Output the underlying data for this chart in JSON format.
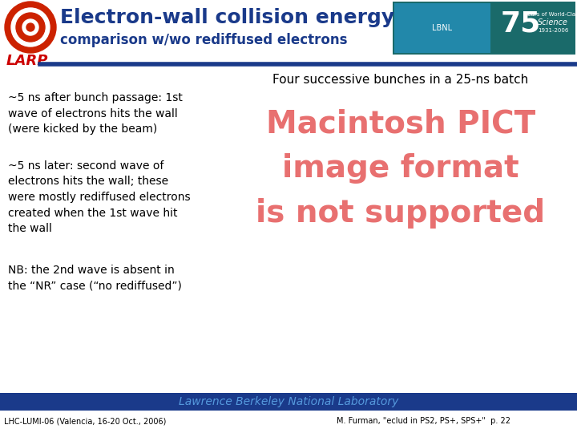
{
  "title_main": "Electron-wall collision energy",
  "title_sub": "comparison w/wo rediffused electrons",
  "larp_text": "LARP",
  "subtitle": "Four successive bunches in a 25-ns batch",
  "text1": "~5 ns after bunch passage: 1st\nwave of electrons hits the wall\n(were kicked by the beam)",
  "text2": "~5 ns later: second wave of\nelectrons hits the wall; these\nwere mostly rediffused electrons\ncreated when the 1st wave hit\nthe wall",
  "text3": "NB: the 2nd wave is absent in\nthe “NR” case (“no rediffused”)",
  "pict_text": "Macintosh PICT\nimage format\nis not supported",
  "footer_left": "LHC-LUMI-06 (Valencia, 16-20 Oct., 2006)",
  "footer_center": "Lawrence Berkeley National Laboratory",
  "footer_right": "M. Furman, \"eclud in PS2, PS+, SPS+\"  p. 22",
  "title_color": "#1a3a8a",
  "larp_color": "#cc0000",
  "pict_color": "#e87070",
  "footer_bg": "#1a3a8a",
  "footer_text_color": "#5599dd",
  "body_bg": "#ffffff",
  "separator_color": "#1a3a8a",
  "logo_bg": "#1a6a6a",
  "text_color": "#000000"
}
